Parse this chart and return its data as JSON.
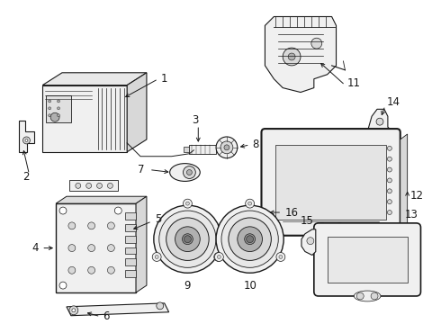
{
  "bg_color": "#ffffff",
  "fig_width": 4.9,
  "fig_height": 3.6,
  "dpi": 100,
  "line_color": "#1a1a1a",
  "text_color": "#000000",
  "gray_fill": "#f0f0f0",
  "gray_mid": "#d8d8d8",
  "gray_dark": "#b0b0b0",
  "label_fontsize": 8.5
}
